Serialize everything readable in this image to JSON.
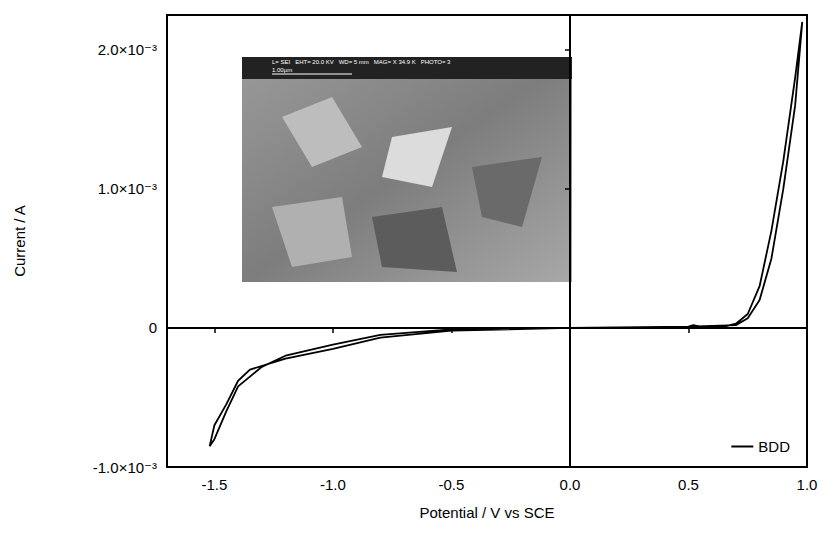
{
  "chart_data": {
    "type": "line",
    "x_label": "Potential / V vs SCE",
    "y_label": "Current / A",
    "xlim": [
      -1.7,
      1.0
    ],
    "ylim": [
      -0.001,
      0.00225
    ],
    "xticks": [
      -1.5,
      {
        "value": -1.0,
        "label": "-1.0"
      },
      -0.5,
      {
        "value": 0.0,
        "label": "0.0"
      },
      0.5,
      {
        "value": 1.0,
        "label": "1.0"
      }
    ],
    "yticks": [
      {
        "value": -0.001,
        "label": "-1.0×10⁻³"
      },
      0,
      {
        "value": 0.001,
        "label": "1.0×10⁻³"
      },
      {
        "value": 0.002,
        "label": "2.0×10⁻³"
      }
    ],
    "legend": "lower right",
    "grid": false,
    "annotations": [
      "L= SEI   EHT= 20.0 KV   WD= 5 mm   MAG= X 34.9 K   PHOTO= 3",
      "1.00µm"
    ],
    "x": [
      0.0,
      0.2,
      0.4,
      0.5,
      0.52,
      0.55,
      0.6,
      0.65,
      0.7,
      0.75,
      0.8,
      0.85,
      0.9,
      0.95,
      0.98,
      0.97,
      0.95,
      0.9,
      0.85,
      0.8,
      0.75,
      0.7,
      0.5,
      0.0,
      -0.5,
      -0.8,
      -1.0,
      -1.2,
      -1.3,
      -1.4,
      -1.45,
      -1.5,
      -1.52,
      -1.5,
      -1.45,
      -1.4,
      -1.35,
      -1.2,
      -1.0,
      -0.8,
      -0.5,
      0.0
    ],
    "series": [
      {
        "name": "BDD",
        "color": "#000000",
        "line_style": "solid",
        "values": [
          0.0,
          0.0,
          5e-06,
          1e-05,
          2e-05,
          1e-05,
          1e-05,
          1e-05,
          3e-05,
          0.0001,
          0.0003,
          0.0007,
          0.0012,
          0.0018,
          0.0022,
          0.002,
          0.0016,
          0.001,
          0.0005,
          0.0002,
          7e-05,
          2e-05,
          1e-05,
          0.0,
          -1e-05,
          -5e-05,
          -0.00012,
          -0.0002,
          -0.00028,
          -0.00042,
          -0.0006,
          -0.0008,
          -0.00085,
          -0.0007,
          -0.00055,
          -0.00038,
          -0.0003,
          -0.00022,
          -0.00015,
          -7e-05,
          -2e-05,
          0.0
        ]
      }
    ]
  }
}
